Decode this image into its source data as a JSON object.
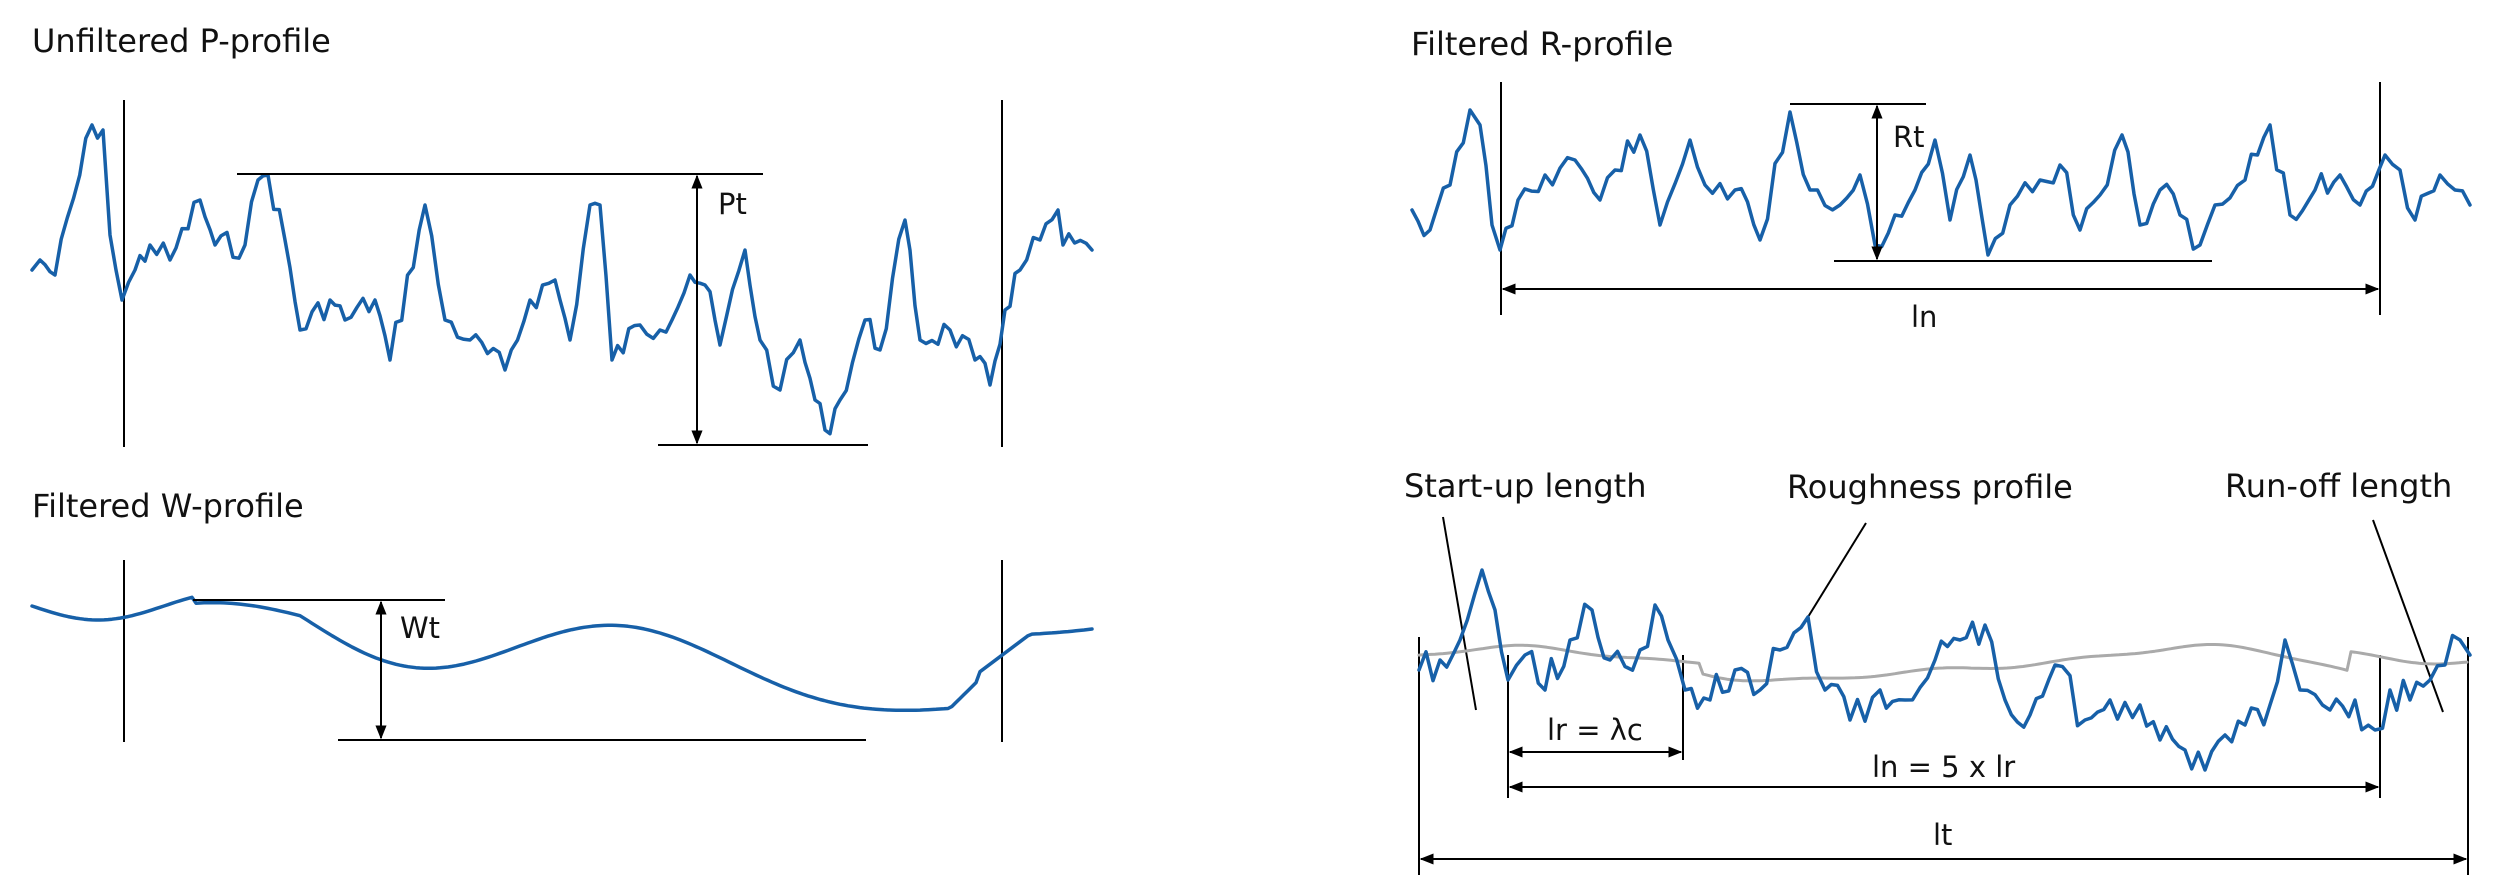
{
  "colors": {
    "profile": "#1760a8",
    "mean_line": "#aaaaaa",
    "ink": "#000000"
  },
  "panels": {
    "p_profile": {
      "title": "Unfiltered P-profile",
      "label": "Pt"
    },
    "w_profile": {
      "title": "Filtered W-profile",
      "label": "Wt"
    },
    "r_profile": {
      "title": "Filtered R-profile",
      "label_rt": "Rt",
      "label_ln": "ln"
    },
    "lengths": {
      "startup": "Start-up length",
      "roughness": "Roughness profile",
      "runoff": "Run-off length",
      "lr": "lr = λc",
      "ln": "ln = 5 x lr",
      "lt": "lt"
    }
  }
}
